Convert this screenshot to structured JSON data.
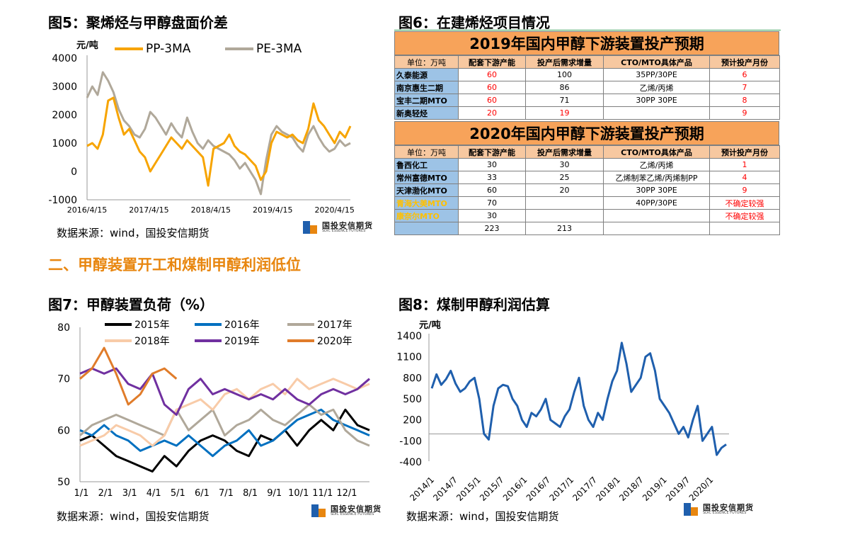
{
  "fig5": {
    "title": "图5：聚烯烃与甲醇盘面价差",
    "unit": "元/吨",
    "source": "数据来源：wind，国投安信期货",
    "chart_data": {
      "type": "line",
      "title": "图5：聚烯烃与甲醇盘面价差",
      "ylabel": "元/吨",
      "ylim": [
        -1000,
        4000
      ],
      "yticks": [
        "4000",
        "3000",
        "2000",
        "1000",
        "0",
        "-1000"
      ],
      "xticks": [
        "2016/4/15",
        "2017/4/15",
        "2018/4/15",
        "2019/4/15",
        "2020/4/15"
      ],
      "x": [
        "2016/4",
        "2016/5",
        "2016/6",
        "2016/7",
        "2016/8",
        "2016/9",
        "2016/10",
        "2016/11",
        "2016/12",
        "2017/1",
        "2017/2",
        "2017/3",
        "2017/4",
        "2017/5",
        "2017/6",
        "2017/7",
        "2017/8",
        "2017/9",
        "2017/10",
        "2017/11",
        "2017/12",
        "2018/1",
        "2018/2",
        "2018/3",
        "2018/4",
        "2018/5",
        "2018/6",
        "2018/7",
        "2018/8",
        "2018/9",
        "2018/10",
        "2018/11",
        "2018/12",
        "2019/1",
        "2019/2",
        "2019/3",
        "2019/4",
        "2019/5",
        "2019/6",
        "2019/7",
        "2019/8",
        "2019/9",
        "2019/10",
        "2019/11",
        "2019/12",
        "2020/1",
        "2020/2",
        "2020/3",
        "2020/4",
        "2020/5",
        "2020/6"
      ],
      "series": [
        {
          "name": "PP-3MA",
          "color": "#f7a400",
          "values": [
            900,
            1000,
            800,
            1300,
            2500,
            2600,
            1900,
            1300,
            1500,
            1100,
            700,
            500,
            0,
            300,
            600,
            900,
            1200,
            1000,
            800,
            1100,
            900,
            700,
            500,
            -500,
            800,
            900,
            1000,
            1300,
            900,
            700,
            600,
            400,
            200,
            -300,
            0,
            1000,
            1400,
            1300,
            1200,
            1300,
            1100,
            1000,
            1500,
            2400,
            1800,
            1600,
            1300,
            1000,
            1400,
            1200,
            1600
          ]
        },
        {
          "name": "PE-3MA",
          "color": "#b0a89a",
          "values": [
            2600,
            3000,
            2700,
            3500,
            3200,
            2800,
            2200,
            1800,
            1600,
            1300,
            1200,
            1500,
            2100,
            1900,
            1600,
            1300,
            1700,
            1400,
            1200,
            1900,
            1400,
            1000,
            800,
            1100,
            900,
            800,
            700,
            600,
            400,
            100,
            300,
            0,
            -300,
            -800,
            400,
            1300,
            1600,
            1400,
            1300,
            1200,
            900,
            700,
            1300,
            1600,
            1200,
            900,
            700,
            800,
            1100,
            900,
            1000
          ]
        }
      ]
    }
  },
  "fig6": {
    "title": "图6：在建烯烃项目情况",
    "t2019": {
      "title": "2019年国内甲醇下游装置投产预期",
      "headers": [
        "单位：万吨",
        "配套下游产能",
        "投产后需求增量",
        "CTO/MTO具体产品",
        "预计投产月份"
      ],
      "rows": [
        [
          "久泰能源",
          "60",
          "100",
          "35PP/30PE",
          "6"
        ],
        [
          "南京惠生二期",
          "60",
          "86",
          "乙烯/丙烯",
          "7"
        ],
        [
          "宝丰二期MTO",
          "60",
          "71",
          "30PP 30PE",
          "8"
        ],
        [
          "新奥轻烃",
          "20",
          "19",
          "",
          "9"
        ]
      ]
    },
    "t2020": {
      "title": "2020年国内甲醇下游装置投产预期",
      "headers": [
        "单位：万吨",
        "配套下游产能",
        "投产后需求增量",
        "CTO/MTO具体产品",
        "预计投产月份"
      ],
      "rows": [
        [
          "鲁西化工",
          "30",
          "30",
          "乙烯/丙烯",
          "1"
        ],
        [
          "常州富德MTO",
          "33",
          "25",
          "乙烯制苯乙烯/丙烯制PP",
          "4"
        ],
        [
          "天津渤化MTO",
          "60",
          "20",
          "30PP 30PE",
          "9"
        ],
        [
          "青海大美MTO",
          "70",
          "",
          "40PP/30PE",
          "不确定较强"
        ],
        [
          "康奈尔MTO",
          "30",
          "",
          "",
          "不确定较强"
        ],
        [
          "",
          "223",
          "213",
          "",
          ""
        ]
      ]
    }
  },
  "section_heading": "二、甲醇装置开工和煤制甲醇利润低位",
  "fig7": {
    "title": "图7：甲醇装置负荷（%）",
    "source": "数据来源：wind，国投安信期货",
    "chart_data": {
      "type": "line",
      "title": "图7：甲醇装置负荷（%）",
      "ylim": [
        50,
        80
      ],
      "yticks": [
        "80",
        "70",
        "60",
        "50"
      ],
      "xticks": [
        "1/1",
        "2/1",
        "3/1",
        "4/1",
        "5/1",
        "6/1",
        "7/1",
        "8/1",
        "9/1",
        "10/1",
        "11/1",
        "12/1"
      ],
      "x_points": [
        "1/1",
        "1/15",
        "2/1",
        "2/15",
        "3/1",
        "3/15",
        "4/1",
        "4/15",
        "5/1",
        "5/15",
        "6/1",
        "6/15",
        "7/1",
        "7/15",
        "8/1",
        "8/15",
        "9/1",
        "9/15",
        "10/1",
        "10/15",
        "11/1",
        "11/15",
        "12/1",
        "12/15",
        "12/31"
      ],
      "series": [
        {
          "name": "2015年",
          "color": "#000000",
          "values": [
            58,
            59,
            57,
            55,
            54,
            53,
            52,
            55,
            53,
            56,
            58,
            59,
            58,
            56,
            55,
            59,
            58,
            60,
            57,
            60,
            62,
            60,
            64,
            61,
            60
          ]
        },
        {
          "name": "2016年",
          "color": "#0070c0",
          "values": [
            60,
            59,
            61,
            59,
            58,
            56,
            57,
            58,
            57,
            59,
            57,
            55,
            57,
            58,
            60,
            57,
            58,
            60,
            62,
            63,
            64,
            62,
            61,
            60,
            59
          ]
        },
        {
          "name": "2017年",
          "color": "#b0a89a",
          "values": [
            59,
            61,
            62,
            63,
            62,
            61,
            60,
            59,
            64,
            60,
            62,
            64,
            59,
            61,
            62,
            64,
            62,
            61,
            63,
            65,
            63,
            64,
            60,
            58,
            57
          ]
        },
        {
          "name": "2018年",
          "color": "#f8cba8",
          "values": [
            57,
            58,
            59,
            61,
            60,
            59,
            57,
            59,
            64,
            65,
            66,
            64,
            67,
            68,
            66,
            68,
            69,
            67,
            70,
            68,
            69,
            70,
            69,
            68,
            69
          ]
        },
        {
          "name": "2019年",
          "color": "#7030a0",
          "values": [
            71,
            72,
            71,
            72,
            69,
            68,
            71,
            65,
            63,
            68,
            70,
            67,
            68,
            67,
            66,
            67,
            66,
            68,
            66,
            65,
            67,
            68,
            67,
            68,
            70
          ]
        },
        {
          "name": "2020年",
          "color": "#e07c2a",
          "values": [
            70,
            72,
            76,
            71,
            65,
            67,
            71,
            72,
            70
          ]
        }
      ]
    }
  },
  "fig8": {
    "title": "图8：煤制甲醇利润估算",
    "unit": "元/吨",
    "source": "数据来源：wind，国投安信期货",
    "chart_data": {
      "type": "line",
      "title": "图8：煤制甲醇利润估算",
      "ylabel": "元/吨",
      "ylim": [
        -400,
        1400
      ],
      "yticks": [
        "1400",
        "1100",
        "800",
        "500",
        "200",
        "-100",
        "-400"
      ],
      "xticks": [
        "2014/1",
        "2014/7",
        "2015/1",
        "2015/7",
        "2016/1",
        "2016/7",
        "2017/1",
        "2017/7",
        "2018/1",
        "2018/7",
        "2019/1",
        "2019/7",
        "2020/1"
      ],
      "series": [
        {
          "name": "煤制甲醇利润",
          "color": "#1f5fad",
          "values": [
            650,
            850,
            700,
            780,
            900,
            720,
            600,
            650,
            750,
            800,
            500,
            0,
            -80,
            400,
            650,
            700,
            680,
            500,
            400,
            200,
            100,
            300,
            250,
            350,
            500,
            200,
            150,
            100,
            250,
            350,
            600,
            800,
            400,
            200,
            100,
            300,
            200,
            500,
            750,
            900,
            1300,
            1000,
            600,
            700,
            800,
            1100,
            1150,
            900,
            500,
            400,
            300,
            150,
            0,
            100,
            -50,
            200,
            400,
            -100,
            0,
            100,
            -300,
            -200,
            -150
          ]
        }
      ]
    }
  }
}
